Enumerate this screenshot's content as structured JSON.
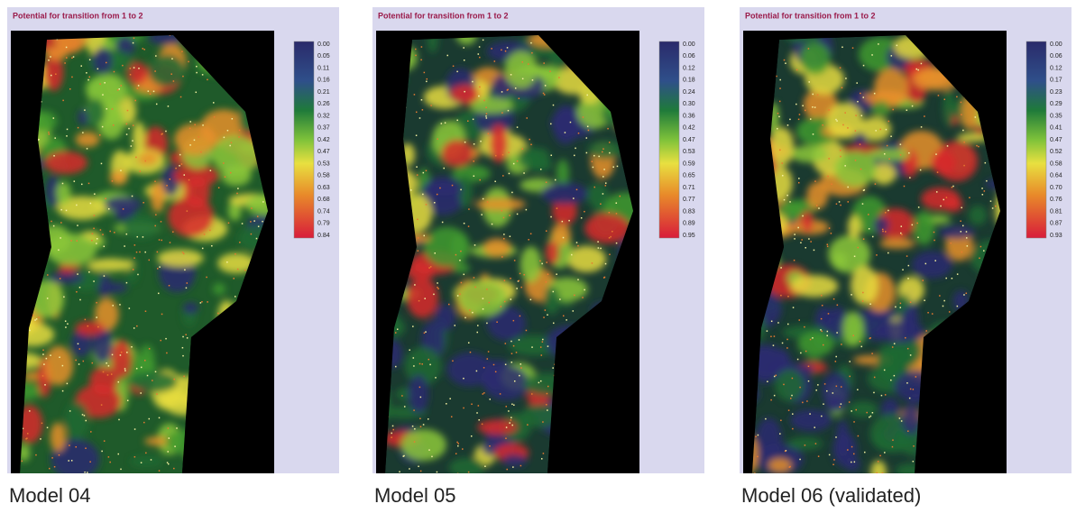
{
  "panels": [
    {
      "title": "Potential for transition from 1 to 2",
      "legend": [
        "0.00",
        "0.05",
        "0.11",
        "0.16",
        "0.21",
        "0.26",
        "0.32",
        "0.37",
        "0.42",
        "0.47",
        "0.53",
        "0.58",
        "0.63",
        "0.68",
        "0.74",
        "0.79",
        "0.84"
      ],
      "caption": "Model 04"
    },
    {
      "title": "Potential for transition from 1 to 2",
      "legend": [
        "0.00",
        "0.06",
        "0.12",
        "0.18",
        "0.24",
        "0.30",
        "0.36",
        "0.42",
        "0.47",
        "0.53",
        "0.59",
        "0.65",
        "0.71",
        "0.77",
        "0.83",
        "0.89",
        "0.95"
      ],
      "caption": "Model 05"
    },
    {
      "title": "Potential for transition from 1 to 2",
      "legend": [
        "0.00",
        "0.06",
        "0.12",
        "0.17",
        "0.23",
        "0.29",
        "0.35",
        "0.41",
        "0.47",
        "0.52",
        "0.58",
        "0.64",
        "0.70",
        "0.76",
        "0.81",
        "0.87",
        "0.93"
      ],
      "caption": "Model 06 (validated)"
    }
  ]
}
